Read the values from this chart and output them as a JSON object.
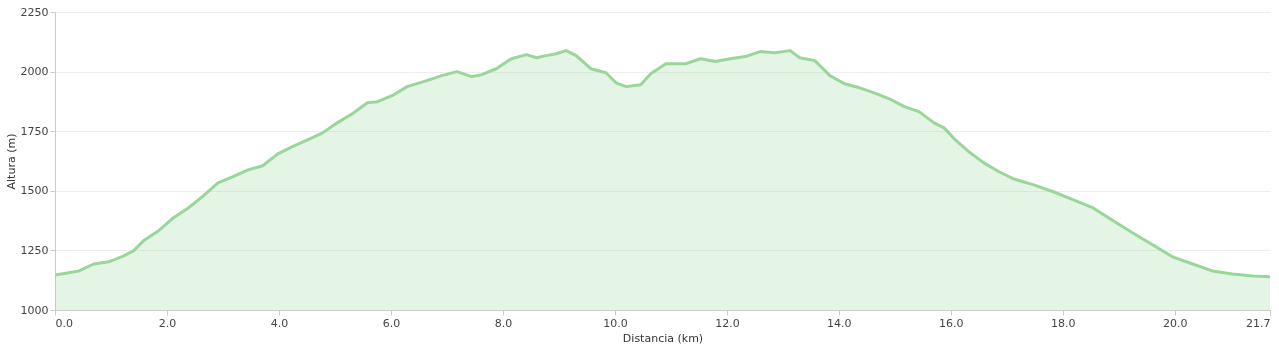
{
  "chart_data": {
    "type": "area",
    "xlabel": "Distancia   (km)",
    "ylabel": "Altura (m)",
    "x": [
      0,
      0.43,
      0.69,
      0.96,
      1.23,
      1.4,
      1.58,
      1.85,
      2.11,
      2.38,
      2.65,
      2.91,
      3.18,
      3.45,
      3.71,
      3.98,
      4.24,
      4.51,
      4.78,
      5.04,
      5.31,
      5.58,
      5.76,
      6.02,
      6.29,
      6.64,
      6.91,
      7.18,
      7.44,
      7.62,
      7.88,
      8.15,
      8.42,
      8.6,
      8.77,
      8.95,
      9.13,
      9.31,
      9.57,
      9.84,
      10.02,
      10.2,
      10.46,
      10.64,
      10.91,
      11.26,
      11.53,
      11.79,
      12.06,
      12.33,
      12.59,
      12.86,
      13.13,
      13.3,
      13.57,
      13.84,
      14.1,
      14.37,
      14.63,
      14.9,
      15.17,
      15.43,
      15.7,
      15.88,
      16.06,
      16.32,
      16.59,
      16.86,
      17.12,
      17.48,
      17.83,
      18.19,
      18.54,
      18.9,
      19.25,
      19.61,
      19.96,
      20.32,
      20.67,
      21.03,
      21.39,
      21.7
    ],
    "series": [
      {
        "color": "#99d699",
        "values": [
          1147,
          1164,
          1193,
          1202,
          1227,
          1248,
          1290,
          1332,
          1386,
          1428,
          1479,
          1533,
          1559,
          1588,
          1605,
          1655,
          1685,
          1714,
          1743,
          1785,
          1823,
          1869,
          1874,
          1899,
          1937,
          1962,
          1983,
          2000,
          1979,
          1987,
          2012,
          2054,
          2071,
          2058,
          2067,
          2075,
          2088,
          2067,
          2012,
          1995,
          1953,
          1937,
          1945,
          1991,
          2033,
          2033,
          2054,
          2042,
          2054,
          2063,
          2084,
          2079,
          2088,
          2058,
          2046,
          1983,
          1949,
          1932,
          1911,
          1886,
          1853,
          1832,
          1785,
          1764,
          1718,
          1664,
          1617,
          1580,
          1550,
          1525,
          1496,
          1462,
          1428,
          1374,
          1323,
          1273,
          1223,
          1193,
          1164,
          1151,
          1143,
          1139
        ]
      }
    ],
    "xlim": [
      0,
      21.7
    ],
    "xticks": [
      {
        "value": 0,
        "label": "0.0"
      },
      {
        "value": 2,
        "label": "2.0"
      },
      {
        "value": 4,
        "label": "4.0"
      },
      {
        "value": 6,
        "label": "6.0"
      },
      {
        "value": 8,
        "label": "8.0"
      },
      {
        "value": 10,
        "label": "10.0"
      },
      {
        "value": 12,
        "label": "12.0"
      },
      {
        "value": 14,
        "label": "14.0"
      },
      {
        "value": 16,
        "label": "16.0"
      },
      {
        "value": 18,
        "label": "18.0"
      },
      {
        "value": 20,
        "label": "20.0"
      },
      21.7
    ],
    "ylim": [
      1000,
      2250
    ],
    "yticks": [
      1000,
      1250,
      1500,
      1750,
      2000,
      2250
    ],
    "grid": "y"
  }
}
